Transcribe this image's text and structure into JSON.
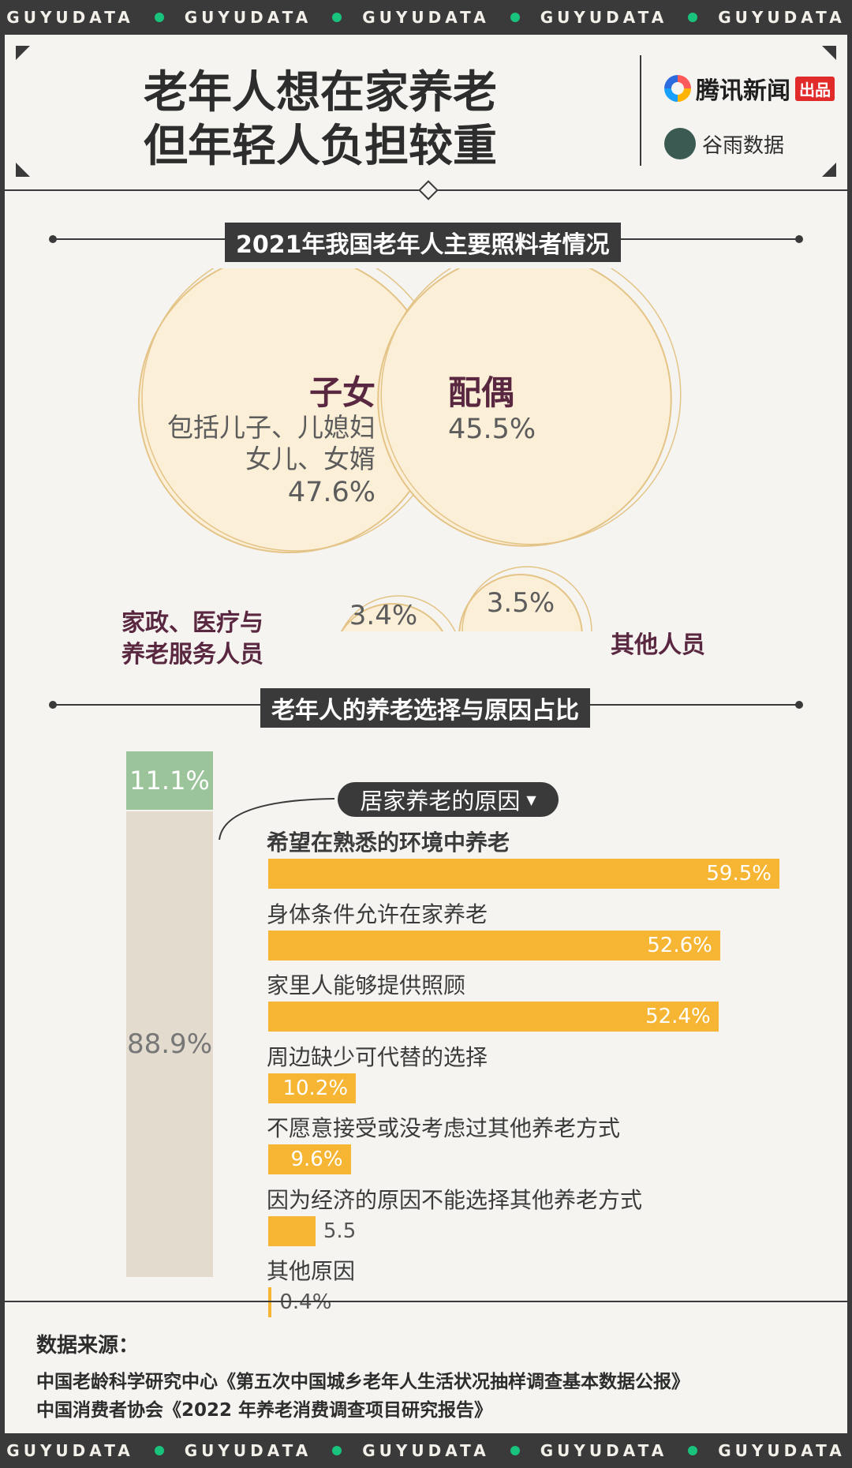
{
  "ticker": [
    "GUYUDATA",
    "GUYUDATA",
    "GUYUDATA",
    "GUYUDATA",
    "GUYUDATA"
  ],
  "header": {
    "title_line1": "老年人想在家养老",
    "title_line2": "但年轻人负担较重",
    "brand1_name": "腾讯新闻",
    "brand1_tag": "出品",
    "brand2_name": "谷雨数据"
  },
  "colors": {
    "panel": "#f5f4f1",
    "dark": "#3a3a3a",
    "circle": "#fcefd8",
    "circle_ring": "#e4c486",
    "bar": "#f6b634",
    "green": "#9bc49a",
    "beige": "#e2dbce",
    "label": "#5a2740"
  },
  "chart_data": [
    {
      "type": "bubble",
      "title": "2021年我国老年人主要照料者情况",
      "items": [
        {
          "label": "子女",
          "desc": [
            "包括儿子、儿媳妇",
            "女儿、女婿"
          ],
          "value": 47.6,
          "display": "47.6%"
        },
        {
          "label": "配偶",
          "value": 45.5,
          "display": "45.5%"
        },
        {
          "label": "家政、医疗与养老服务人员",
          "label_lines": [
            "家政、医疗与",
            "养老服务人员"
          ],
          "value": 3.4,
          "display": "3.4%"
        },
        {
          "label": "其他人员",
          "value": 3.5,
          "display": "3.5%"
        }
      ]
    },
    {
      "type": "bar",
      "title": "老年人的养老选择与原因占比",
      "stack": [
        {
          "value": 11.1,
          "display": "11.1%",
          "color": "#9bc49a"
        },
        {
          "value": 88.9,
          "display": "88.9%",
          "color": "#e2dbce"
        }
      ],
      "reasons_title": "居家养老的原因",
      "categories": [
        "希望在熟悉的环境中养老",
        "身体条件允许在家养老",
        "家里人能够提供照顾",
        "周边缺少可代替的选择",
        "不愿意接受或没考虑过其他养老方式",
        "因为经济的原因不能选择其他养老方式",
        "其他原因"
      ],
      "values": [
        59.5,
        52.6,
        52.4,
        10.2,
        9.6,
        5.5,
        0.4
      ],
      "value_labels": [
        "59.5%",
        "52.6%",
        "52.4%",
        "10.2%",
        "9.6%",
        "5.5",
        "0.4%"
      ]
    }
  ],
  "sources": {
    "heading": "数据来源：",
    "lines": [
      "中国老龄科学研究中心《第五次中国城乡老年人生活状况抽样调查基本数据公报》",
      "中国消费者协会《2022 年养老消费调查项目研究报告》"
    ]
  }
}
